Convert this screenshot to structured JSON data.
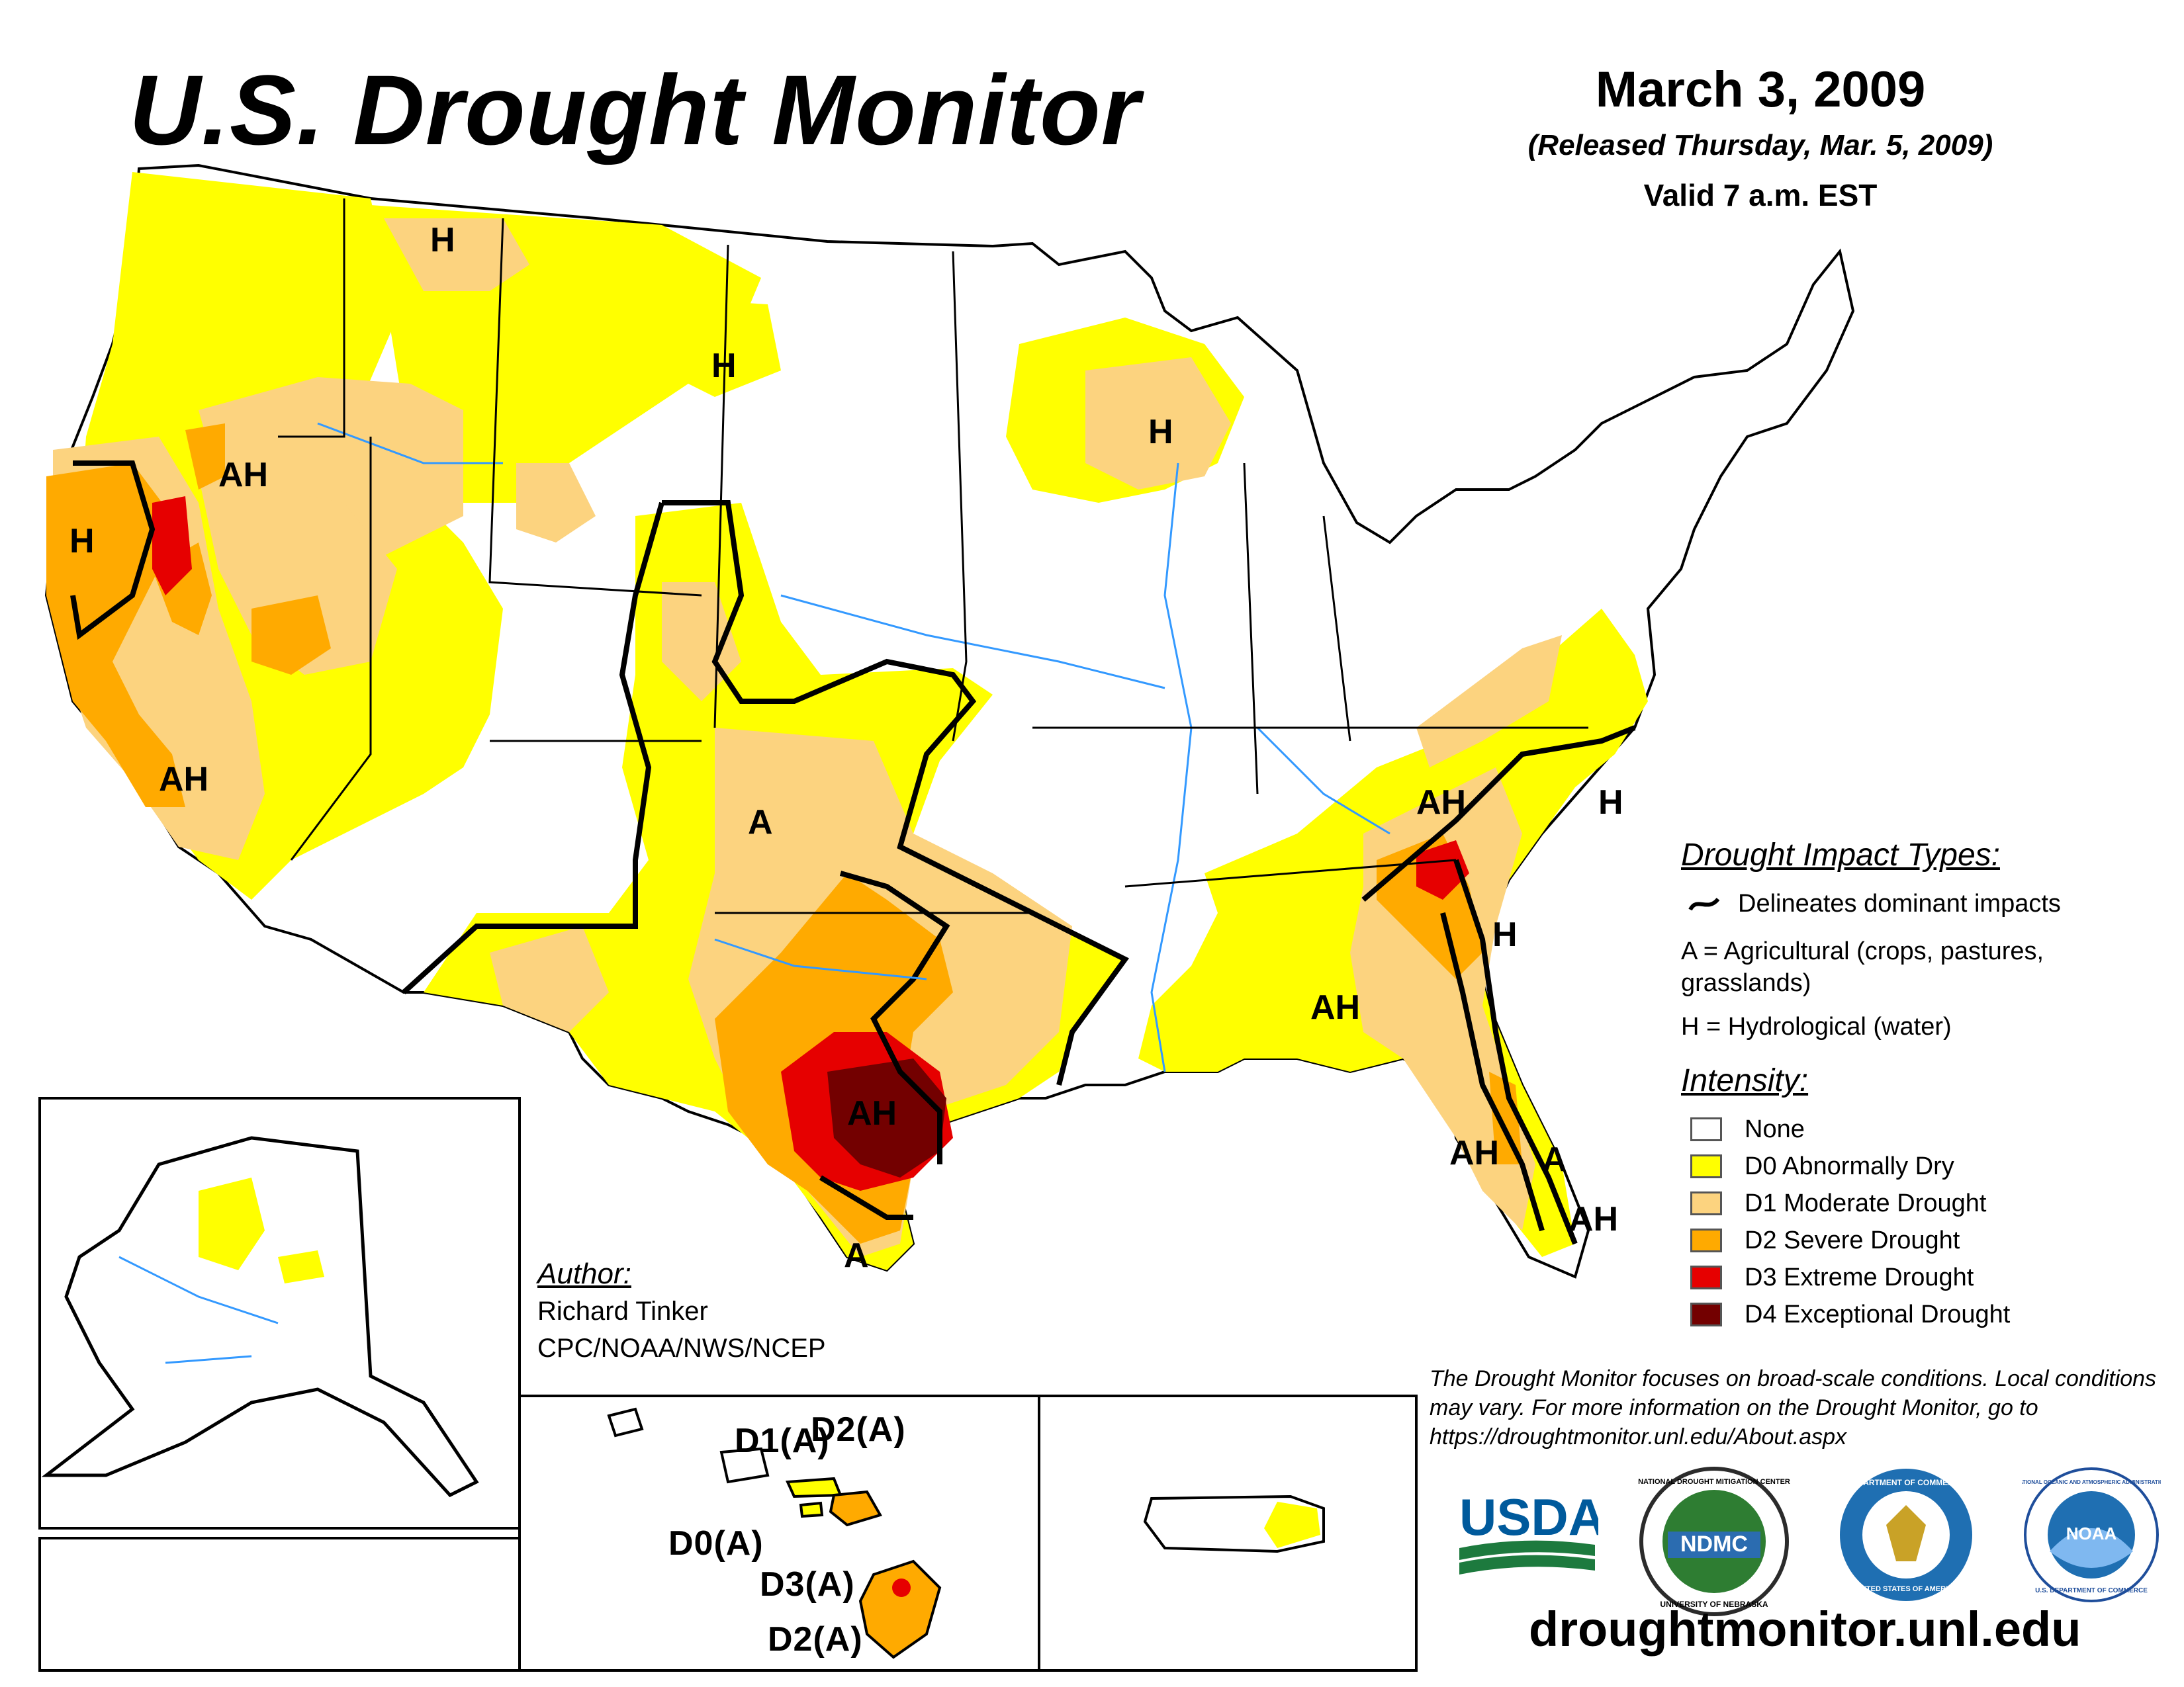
{
  "header": {
    "title": "U.S. Drought Monitor",
    "date": "March 3, 2009",
    "released": "(Released Thursday, Mar. 5, 2009)",
    "valid": "Valid 7 a.m. EST"
  },
  "map_labels": {
    "conus": [
      "H",
      "H",
      "H",
      "H",
      "AH",
      "AH",
      "A",
      "AH",
      "AH",
      "H",
      "H",
      "AH",
      "AH",
      "A",
      "AH",
      "A",
      "AH"
    ],
    "hawaii": [
      "D1(A)",
      "D2(A)",
      "D0(A)",
      "D3(A)",
      "D2(A)"
    ]
  },
  "legend": {
    "impact_title": "Drought Impact Types:",
    "delineates": "Delineates dominant impacts",
    "agricultural": "A = Agricultural (crops, pastures, grasslands)",
    "hydrological": "H = Hydrological (water)",
    "intensity_title": "Intensity:",
    "intensity": [
      {
        "label": "None",
        "color": "#ffffff"
      },
      {
        "label": "D0 Abnormally Dry",
        "color": "#ffff00"
      },
      {
        "label": "D1 Moderate Drought",
        "color": "#fcd37f"
      },
      {
        "label": "D2 Severe Drought",
        "color": "#ffaa00"
      },
      {
        "label": "D3 Extreme Drought",
        "color": "#e60000"
      },
      {
        "label": "D4 Exceptional Drought",
        "color": "#730000"
      }
    ]
  },
  "author": {
    "heading": "Author:",
    "name": "Richard Tinker",
    "org": "CPC/NOAA/NWS/NCEP"
  },
  "note": "The Drought Monitor focuses on broad-scale conditions. Local conditions may vary. For more information on the Drought Monitor, go to https://droughtmonitor.unl.edu/About.aspx",
  "logos": {
    "usda": "USDA",
    "ndmc": "NDMC",
    "ndmc_ring": "NATIONAL DROUGHT MITIGATION CENTER",
    "ndmc_ring2": "UNIVERSITY OF NEBRASKA",
    "doc_ring": "DEPARTMENT OF COMMERCE",
    "doc_ring2": "UNITED STATES OF AMERICA",
    "noaa": "NOAA",
    "noaa_ring": "NATIONAL OCEANIC AND ATMOSPHERIC ADMINISTRATION",
    "noaa_ring2": "U.S. DEPARTMENT OF COMMERCE"
  },
  "footer_url": "droughtmonitor.unl.edu",
  "colors": {
    "d0": "#ffff00",
    "d1": "#fcd37f",
    "d2": "#ffaa00",
    "d3": "#e60000",
    "d4": "#730000",
    "water": "#3399ff",
    "usda_blue": "#005a9c",
    "usda_green": "#1d7a3e"
  }
}
